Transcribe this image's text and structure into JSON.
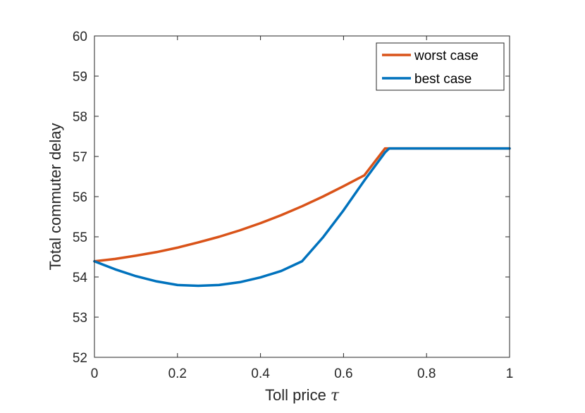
{
  "chart_data": {
    "type": "line",
    "xlabel": "Toll price",
    "xlabel_symbol": "τ",
    "ylabel": "Total commuter delay",
    "xlim": [
      0,
      1
    ],
    "ylim": [
      52,
      60
    ],
    "xticks": [
      0,
      0.2,
      0.4,
      0.6,
      0.8,
      1
    ],
    "xtick_labels": [
      "0",
      "0.2",
      "0.4",
      "0.6",
      "0.8",
      "1"
    ],
    "yticks": [
      52,
      53,
      54,
      55,
      56,
      57,
      58,
      59,
      60
    ],
    "ytick_labels": [
      "52",
      "53",
      "54",
      "55",
      "56",
      "57",
      "58",
      "59",
      "60"
    ],
    "grid": false,
    "legend_position": "top-right",
    "series": [
      {
        "name": "worst case",
        "color": "#D95319",
        "x": [
          0,
          0.05,
          0.1,
          0.15,
          0.2,
          0.25,
          0.3,
          0.35,
          0.4,
          0.45,
          0.5,
          0.55,
          0.6,
          0.65,
          0.7,
          0.75,
          0.8,
          0.85,
          0.9,
          0.95,
          1
        ],
        "y": [
          54.39,
          54.45,
          54.53,
          54.62,
          54.73,
          54.86,
          55.0,
          55.16,
          55.34,
          55.54,
          55.76,
          56.0,
          56.26,
          56.53,
          57.2,
          57.2,
          57.2,
          57.2,
          57.2,
          57.2,
          57.2
        ]
      },
      {
        "name": "best case",
        "color": "#0072BD",
        "x": [
          0,
          0.05,
          0.1,
          0.15,
          0.2,
          0.25,
          0.3,
          0.35,
          0.4,
          0.45,
          0.5,
          0.55,
          0.6,
          0.65,
          0.7,
          0.71,
          0.75,
          0.8,
          0.85,
          0.9,
          0.95,
          1
        ],
        "y": [
          54.39,
          54.19,
          54.02,
          53.89,
          53.8,
          53.78,
          53.8,
          53.87,
          53.99,
          54.15,
          54.39,
          54.98,
          55.66,
          56.4,
          57.1,
          57.2,
          57.2,
          57.2,
          57.2,
          57.2,
          57.2,
          57.2
        ]
      }
    ]
  }
}
